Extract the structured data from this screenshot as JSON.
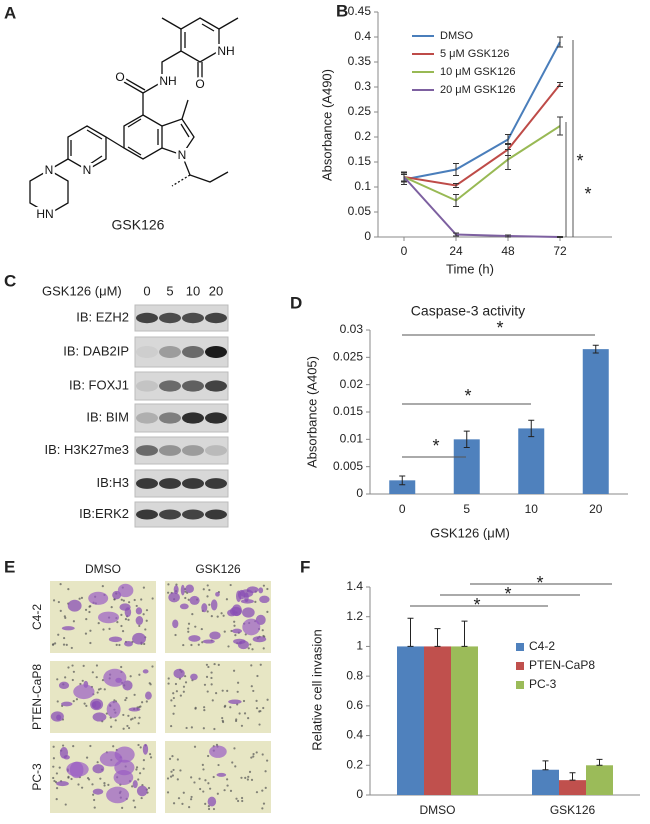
{
  "panel_labels": [
    "A",
    "B",
    "C",
    "D",
    "E",
    "F"
  ],
  "structure": {
    "name": "GSK126",
    "atoms": [
      "NH",
      "O",
      "NH",
      "O",
      "N",
      "N",
      "N",
      "HN"
    ]
  },
  "blot": {
    "header": "GSK126 (μM)",
    "doses": [
      "0",
      "5",
      "10",
      "20"
    ],
    "rows": [
      "IB: EZH2",
      "IB: DAB2IP",
      "IB: FOXJ1",
      "IB: BIM",
      "IB: H3K27me3",
      "IB:H3",
      "IB:ERK2"
    ]
  },
  "invasion_images": {
    "columns": [
      "DMSO",
      "GSK126"
    ],
    "rows": [
      "C4-2",
      "PTEN-CaP8",
      "PC-3"
    ]
  },
  "chart_data": [
    {
      "type": "line",
      "x": [
        0,
        24,
        48,
        72
      ],
      "xlim": [
        -12,
        96
      ],
      "xticks": [
        0,
        24,
        48,
        72
      ],
      "ylim": [
        0,
        0.45
      ],
      "yticks": [
        0,
        0.05,
        0.1,
        0.15,
        0.2,
        0.25,
        0.3,
        0.35,
        0.4,
        0.45
      ],
      "xlabel": "Time (h)",
      "ylabel": "Absorbance (A490)",
      "legend": "upper left",
      "series": [
        {
          "name": "DMSO",
          "color": "#4a7ebb",
          "values": [
            0.115,
            0.135,
            0.195,
            0.39
          ],
          "errors": [
            0.01,
            0.012,
            0.01,
            0.01
          ]
        },
        {
          "name": "5 μM GSK126",
          "color": "#be4b48",
          "values": [
            0.12,
            0.103,
            0.175,
            0.305
          ],
          "errors": [
            0.008,
            0.004,
            0.012,
            0.004
          ]
        },
        {
          "name": "10 μM GSK126",
          "color": "#98b954",
          "values": [
            0.12,
            0.073,
            0.155,
            0.222
          ],
          "errors": [
            0.01,
            0.012,
            0.02,
            0.018
          ]
        },
        {
          "name": "20 μM GSK126",
          "color": "#7d60a0",
          "values": [
            0.12,
            0.005,
            0.002,
            0.0
          ],
          "errors": [
            0.01,
            0.003,
            0.002,
            0.001
          ]
        }
      ],
      "annotations": [
        "*",
        "*"
      ]
    },
    {
      "type": "bar",
      "title": "Caspase-3 activity",
      "categories": [
        "0",
        "5",
        "10",
        "20"
      ],
      "values": [
        0.0025,
        0.01,
        0.012,
        0.0265
      ],
      "errors": [
        0.0008,
        0.0015,
        0.0015,
        0.0007
      ],
      "color": "#4f81bd",
      "ylim": [
        0,
        0.03
      ],
      "yticks": [
        0,
        0.005,
        0.01,
        0.015,
        0.02,
        0.025,
        0.03
      ],
      "xlabel": "GSK126 (μM)",
      "ylabel": "Absorbance (A405)",
      "annotations": [
        "*",
        "*",
        "*"
      ]
    },
    {
      "type": "bar",
      "categories": [
        "DMSO",
        "GSK126"
      ],
      "series": [
        {
          "name": "C4-2",
          "color": "#4f81bd",
          "values": [
            1,
            0.17
          ],
          "errors": [
            0.19,
            0.06
          ]
        },
        {
          "name": "PTEN-CaP8",
          "color": "#c0504d",
          "values": [
            1,
            0.1
          ],
          "errors": [
            0.12,
            0.05
          ]
        },
        {
          "name": "PC-3",
          "color": "#9bbb59",
          "values": [
            1,
            0.2
          ],
          "errors": [
            0.17,
            0.04
          ]
        }
      ],
      "ylim": [
        0,
        1.4
      ],
      "yticks": [
        0,
        0.2,
        0.4,
        0.6,
        0.8,
        1,
        1.2,
        1.4
      ],
      "ylabel": "Relative cell invasion",
      "legend": "center right",
      "annotations": [
        "*",
        "*",
        "*"
      ]
    }
  ]
}
